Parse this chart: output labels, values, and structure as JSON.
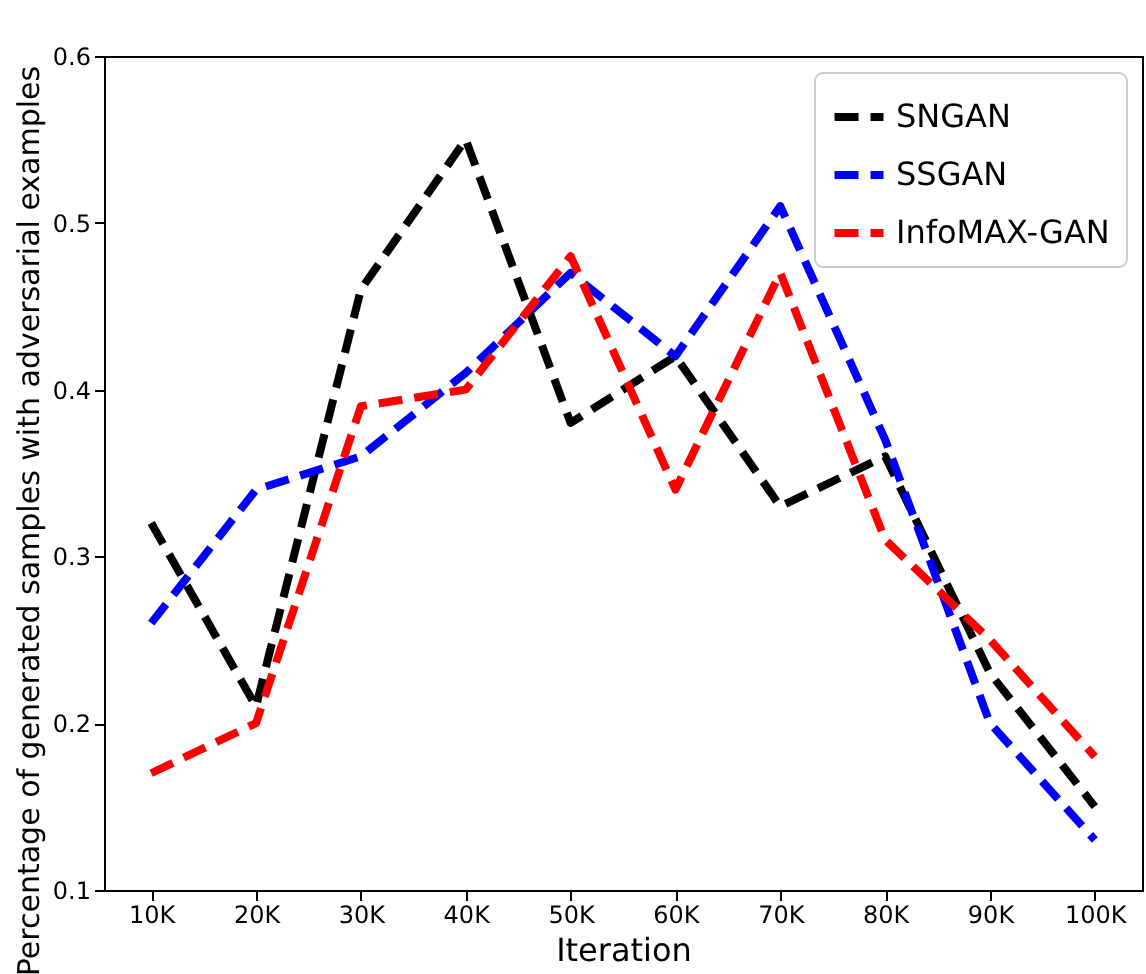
{
  "chart_data": {
    "type": "line",
    "xlabel": "Iteration",
    "ylabel": "Percentage of generated samples with adversarial examples",
    "categories": [
      "10K",
      "20K",
      "30K",
      "40K",
      "50K",
      "60K",
      "70K",
      "80K",
      "90K",
      "100K"
    ],
    "series": [
      {
        "name": "SNGAN",
        "color": "#000000",
        "values": [
          0.32,
          0.21,
          0.46,
          0.55,
          0.38,
          0.42,
          0.33,
          0.36,
          0.23,
          0.15
        ]
      },
      {
        "name": "SSGAN",
        "color": "#0000ff",
        "values": [
          0.26,
          0.34,
          0.36,
          0.41,
          0.47,
          0.42,
          0.51,
          0.37,
          0.2,
          0.13
        ]
      },
      {
        "name": "InfoMAX-GAN",
        "color": "#ff0000",
        "values": [
          0.17,
          0.2,
          0.39,
          0.4,
          0.48,
          0.34,
          0.47,
          0.31,
          0.25,
          0.18
        ]
      }
    ],
    "ylim": [
      0.1,
      0.6
    ],
    "yticks": [
      0.1,
      0.2,
      0.3,
      0.4,
      0.5,
      0.6
    ],
    "grid": false,
    "legend": "top right",
    "line_style": "dashed",
    "marker": "none"
  }
}
